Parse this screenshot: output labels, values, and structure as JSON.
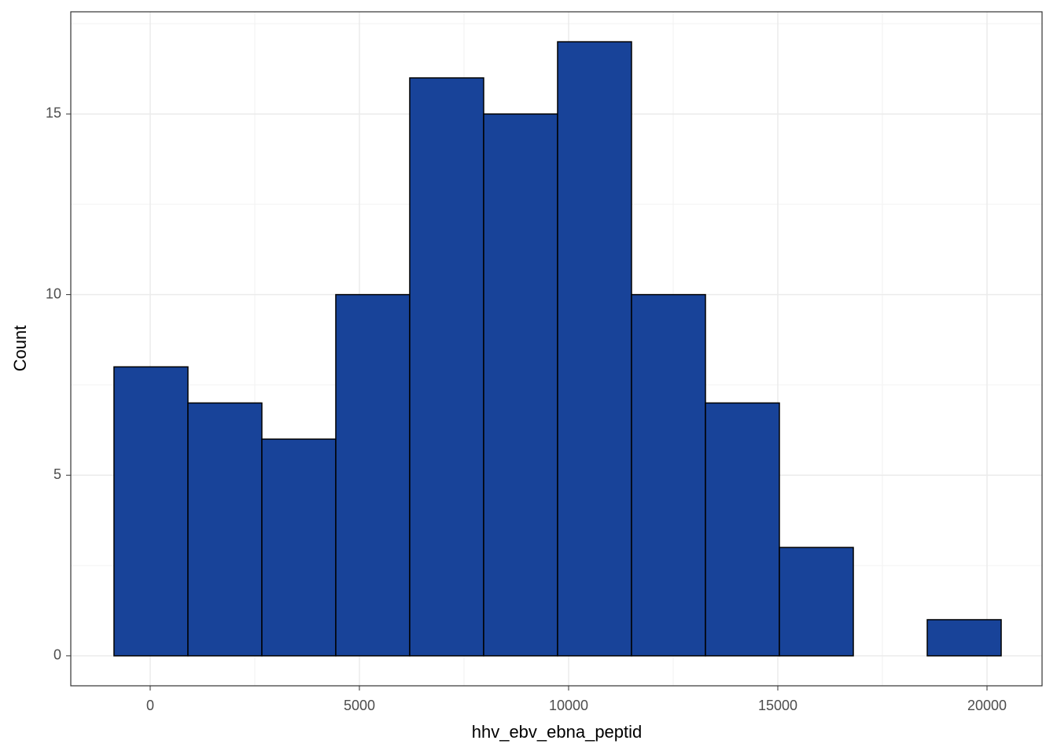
{
  "chart_data": {
    "type": "histogram",
    "x_label": "hhv_ebv_ebna_peptid",
    "y_label": "Count",
    "bins": [
      -865,
      902,
      2669,
      4436,
      6203,
      7970,
      9737,
      11504,
      13271,
      15038,
      16805,
      18572,
      20339
    ],
    "values": [
      8,
      7,
      6,
      10,
      16,
      15,
      17,
      10,
      7,
      3,
      0,
      1
    ],
    "color": "#184399",
    "edge_color": "#000000",
    "xlim": [
      -1898,
      21316
    ],
    "xticks": [
      0,
      5000,
      10000,
      15000,
      20000
    ],
    "ylim": [
      -0.83,
      17.83
    ],
    "yticks": [
      0,
      5,
      10,
      15
    ],
    "grid": true
  }
}
